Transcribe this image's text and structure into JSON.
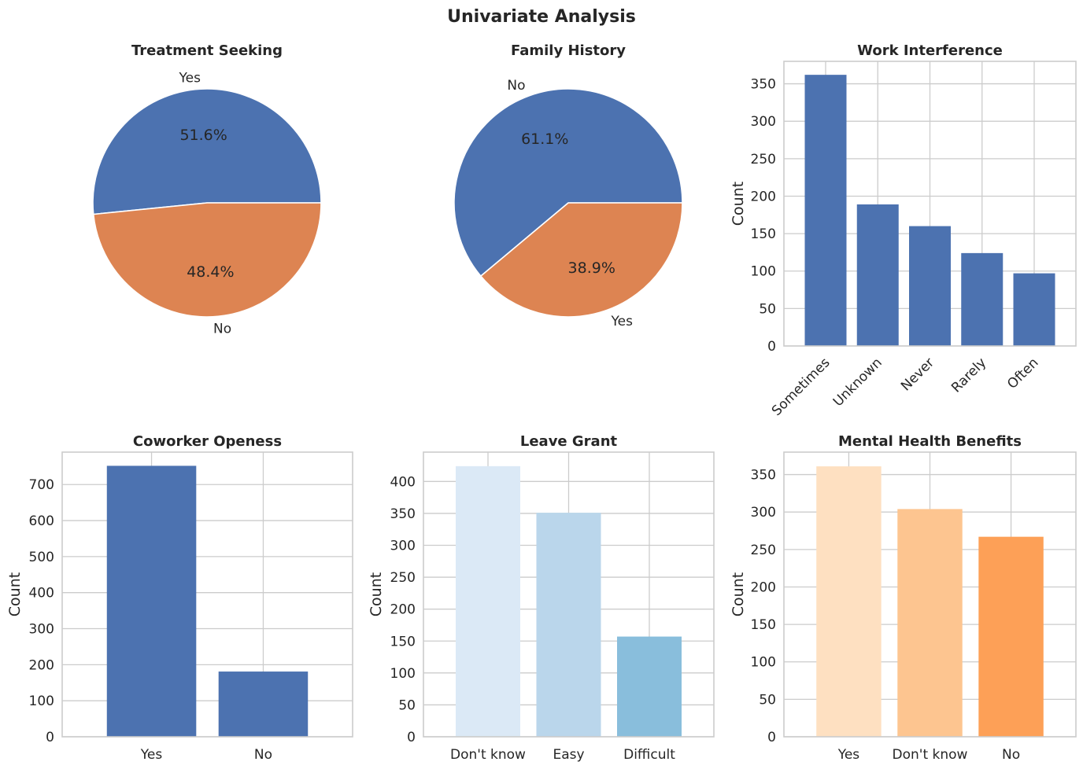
{
  "figure": {
    "title": "Univariate Analysis"
  },
  "chart_data": [
    {
      "type": "pie",
      "title": "Treatment Seeking",
      "labels": [
        "Yes",
        "No"
      ],
      "values": [
        51.6,
        48.4
      ],
      "autopct": [
        "51.6%",
        "48.4%"
      ],
      "colors": [
        "#4c72b0",
        "#dd8452"
      ]
    },
    {
      "type": "pie",
      "title": "Family History",
      "labels": [
        "No",
        "Yes"
      ],
      "values": [
        61.1,
        38.9
      ],
      "autopct": [
        "61.1%",
        "38.9%"
      ],
      "colors": [
        "#4c72b0",
        "#dd8452"
      ]
    },
    {
      "type": "bar",
      "title": "Work Interference",
      "categories": [
        "Sometimes",
        "Unknown",
        "Never",
        "Rarely",
        "Often"
      ],
      "values": [
        362,
        189,
        160,
        124,
        97
      ],
      "xlabel": "",
      "ylabel": "Count",
      "ylim": [
        0,
        380
      ],
      "yticks": [
        0,
        50,
        100,
        150,
        200,
        250,
        300,
        350
      ],
      "xtick_rotation": 45,
      "colors": [
        "#4c72b0",
        "#4c72b0",
        "#4c72b0",
        "#4c72b0",
        "#4c72b0"
      ],
      "grid": true
    },
    {
      "type": "bar",
      "title": "Coworker Openess",
      "categories": [
        "Yes",
        "No"
      ],
      "values": [
        752,
        181
      ],
      "xlabel": "",
      "ylabel": "Count",
      "ylim": [
        0,
        790
      ],
      "yticks": [
        0,
        100,
        200,
        300,
        400,
        500,
        600,
        700
      ],
      "xtick_rotation": 0,
      "colors": [
        "#4c72b0",
        "#4c72b0"
      ],
      "grid": true
    },
    {
      "type": "bar",
      "title": "Leave Grant",
      "categories": [
        "Don't know",
        "Easy",
        "Difficult"
      ],
      "values": [
        424,
        351,
        157
      ],
      "xlabel": "",
      "ylabel": "Count",
      "ylim": [
        0,
        446
      ],
      "yticks": [
        0,
        50,
        100,
        150,
        200,
        250,
        300,
        350,
        400
      ],
      "xtick_rotation": 0,
      "colors": [
        "#dbe9f6",
        "#bad6eb",
        "#89bedc"
      ],
      "grid": true
    },
    {
      "type": "bar",
      "title": "Mental Health Benefits",
      "categories": [
        "Yes",
        "Don't know",
        "No"
      ],
      "values": [
        361,
        304,
        267
      ],
      "xlabel": "",
      "ylabel": "Count",
      "ylim": [
        0,
        380
      ],
      "yticks": [
        0,
        50,
        100,
        150,
        200,
        250,
        300,
        350
      ],
      "xtick_rotation": 0,
      "colors": [
        "#fee0c1",
        "#fdc590",
        "#fda057"
      ],
      "grid": true
    }
  ]
}
